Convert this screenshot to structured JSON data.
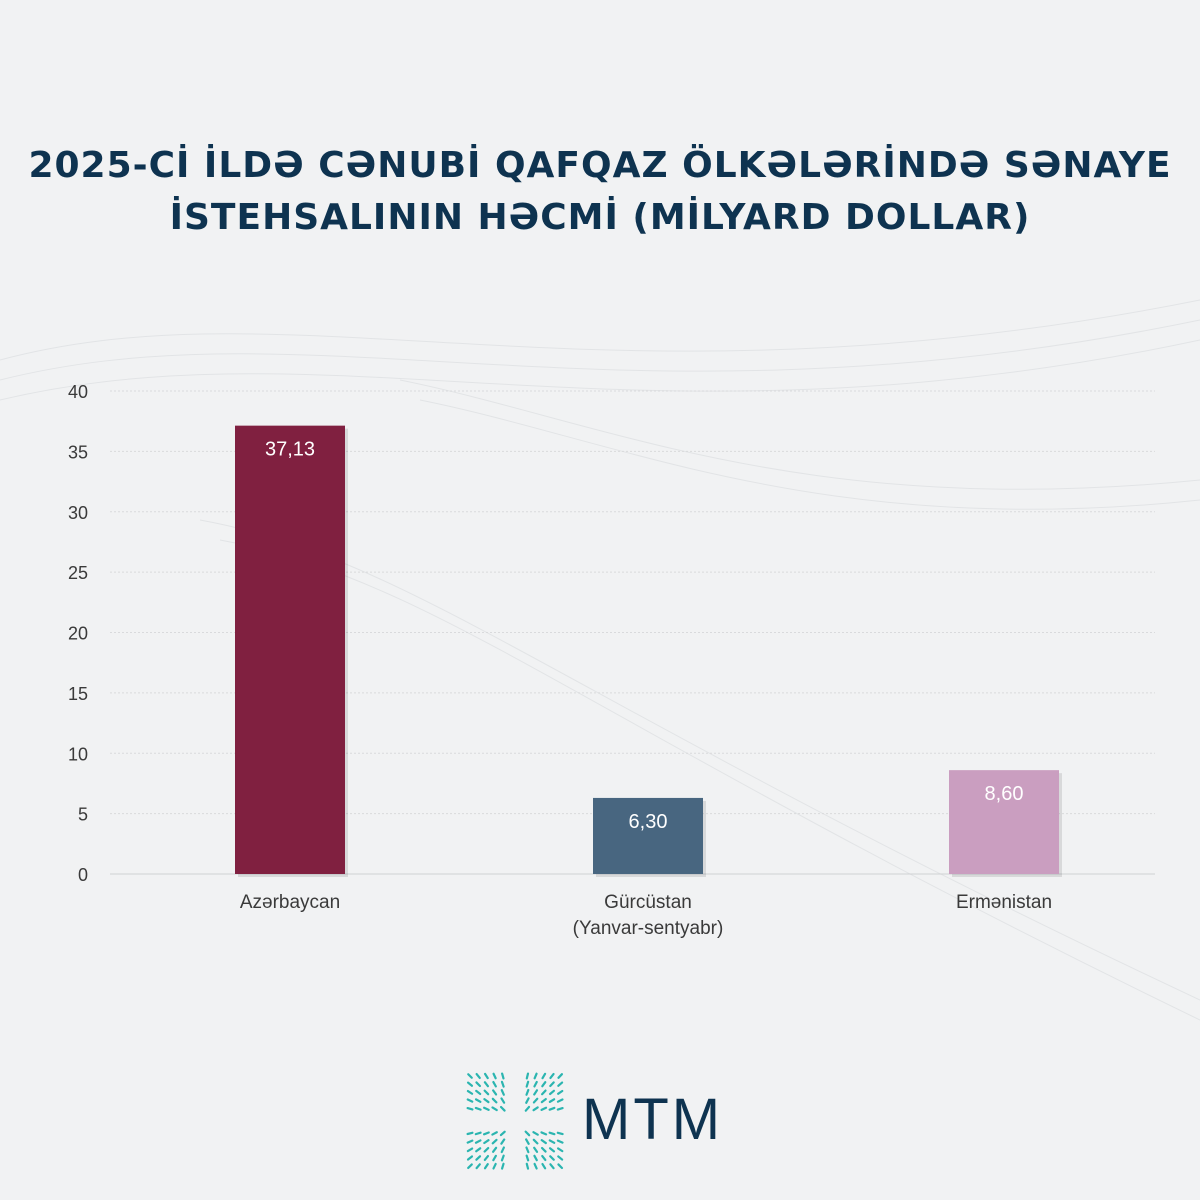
{
  "title": {
    "line1": "2025-Cİ İLDƏ CƏNUBİ QAFQAZ ÖLKƏLƏRİNDƏ SƏNAYE",
    "line2": "İSTEHSALININ HƏCMİ (MİLYARD DOLLAR)"
  },
  "chart_data": {
    "type": "bar",
    "title": "2025-Cİ İLDƏ CƏNUBİ QAFQAZ ÖLKƏLƏRİNDƏ SƏNAYE İSTEHSALININ HƏCMİ (MİLYARD DOLLAR)",
    "categories": [
      "Azərbaycan",
      "Gürcüstan\n(Yanvar-sentyabr)",
      "Ermənistan"
    ],
    "values": [
      37.13,
      6.3,
      8.6
    ],
    "value_labels": [
      "37,13",
      "6,30",
      "8,60"
    ],
    "colors": [
      "#882245",
      "#4d6d89",
      "#d7a8cc"
    ],
    "yticks": [
      0,
      5,
      10,
      15,
      20,
      25,
      30,
      35,
      40
    ],
    "ylim": [
      0,
      40
    ],
    "grid": true,
    "xlabel": "",
    "ylabel": ""
  },
  "logo": {
    "text": "MTM",
    "color": "#0e3350",
    "accent": "#2bb5b0"
  }
}
